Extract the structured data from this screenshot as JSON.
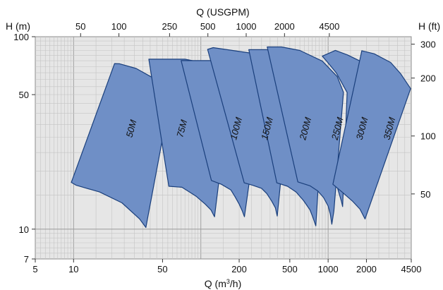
{
  "chart_data": {
    "type": "area",
    "title": "",
    "x_bottom": {
      "label": "Q (m³/h)",
      "label_main": "Q (m",
      "label_sup": "3",
      "label_rest": "/h)",
      "scale": "log",
      "range": [
        5,
        4500
      ],
      "ticks": [
        5,
        10,
        50,
        200,
        500,
        1000,
        2000,
        4500
      ],
      "tick_labels": [
        "5",
        "10",
        "50",
        "200",
        "500",
        "1000",
        "2000",
        "4500"
      ]
    },
    "x_top": {
      "label": "Q (USGPM)",
      "scale": "log",
      "ticks": [
        50,
        100,
        250,
        500,
        1000,
        2000,
        4500
      ],
      "tick_labels": [
        "50",
        "100",
        "250",
        "500",
        "1000",
        "2000",
        "4500"
      ]
    },
    "y_left": {
      "label": "H (m)",
      "scale": "log",
      "range": [
        7,
        100
      ],
      "ticks": [
        7,
        10,
        50,
        100
      ],
      "tick_labels": [
        "7",
        "10",
        "50",
        "100"
      ]
    },
    "y_right": {
      "label": "H (ft)",
      "scale": "log",
      "ticks": [
        50,
        100,
        200,
        300
      ],
      "tick_labels": [
        "50",
        "100",
        "200",
        "300"
      ]
    },
    "grid": true,
    "fill_color": "#6f8fc6",
    "edge_color": "#1a3f7c",
    "series": [
      {
        "name": "50M",
        "label_at": [
          30,
          33
        ],
        "boundary": [
          [
            9.6,
            17.5
          ],
          [
            10.5,
            16.9
          ],
          [
            16,
            15.6
          ],
          [
            24,
            13.7
          ],
          [
            33,
            11.3
          ],
          [
            37,
            10.2
          ],
          [
            57,
            46.9
          ],
          [
            43,
            60.6
          ],
          [
            31,
            68.4
          ],
          [
            23,
            72.3
          ],
          [
            21,
            72.5
          ]
        ]
      },
      {
        "name": "75M",
        "label_at": [
          75,
          33
        ],
        "boundary": [
          [
            56,
            16.7
          ],
          [
            71,
            16.5
          ],
          [
            80,
            15.7
          ],
          [
            92,
            14.8
          ],
          [
            108,
            13.5
          ],
          [
            120,
            12.6
          ],
          [
            128,
            11.6
          ],
          [
            172,
            56.6
          ],
          [
            140,
            66.3
          ],
          [
            100,
            73.6
          ],
          [
            75,
            76.4
          ],
          [
            39,
            76.4
          ]
        ]
      },
      {
        "name": "100M",
        "label_at": [
          200,
          33
        ],
        "boundary": [
          [
            121,
            17.9
          ],
          [
            145,
            17.1
          ],
          [
            172,
            16.0
          ],
          [
            185,
            14.8
          ],
          [
            200,
            13.5
          ],
          [
            212,
            12.4
          ],
          [
            220,
            11.6
          ],
          [
            308,
            57.1
          ],
          [
            275,
            64.9
          ],
          [
            225,
            71.8
          ],
          [
            172,
            75.1
          ],
          [
            120,
            75.1
          ],
          [
            70,
            75.1
          ]
        ]
      },
      {
        "name": "150M",
        "label_at": [
          350,
          33
        ],
        "boundary": [
          [
            219,
            17.4
          ],
          [
            255,
            16.9
          ],
          [
            300,
            16.3
          ],
          [
            330,
            15.3
          ],
          [
            360,
            14.0
          ],
          [
            385,
            12.9
          ],
          [
            398,
            11.7
          ],
          [
            502,
            54.5
          ],
          [
            450,
            65.2
          ],
          [
            350,
            77.4
          ],
          [
            250,
            82.1
          ],
          [
            125,
            87.7
          ],
          [
            113,
            85.9
          ]
        ]
      },
      {
        "name": "200M",
        "label_at": [
          700,
          33
        ],
        "boundary": [
          [
            395,
            17.4
          ],
          [
            480,
            16.7
          ],
          [
            560,
            15.6
          ],
          [
            640,
            14.1
          ],
          [
            720,
            12.6
          ],
          [
            760,
            11.5
          ],
          [
            800,
            10.4
          ],
          [
            930,
            52.6
          ],
          [
            830,
            61.8
          ],
          [
            650,
            72.7
          ],
          [
            500,
            80.3
          ],
          [
            330,
            85.6
          ],
          [
            238,
            85.6
          ]
        ]
      },
      {
        "name": "250M",
        "label_at": [
          1250,
          33
        ],
        "boundary": [
          [
            578,
            17.6
          ],
          [
            720,
            16.8
          ],
          [
            830,
            15.8
          ],
          [
            920,
            14.6
          ],
          [
            1000,
            13.2
          ],
          [
            1040,
            12.0
          ],
          [
            1070,
            10.6
          ],
          [
            1110,
            12.4
          ],
          [
            1320,
            51.4
          ],
          [
            1180,
            62.0
          ],
          [
            900,
            74.7
          ],
          [
            600,
            84.8
          ],
          [
            430,
            88.5
          ],
          [
            332,
            88.5
          ]
        ]
      },
      {
        "name": "300M",
        "label_at": [
          1950,
          33
        ],
        "boundary": [
          [
            1170,
            16.8
          ],
          [
            1270,
            14.0
          ],
          [
            1300,
            13.1
          ],
          [
            1410,
            51.3
          ],
          [
            1160,
            64.8
          ],
          [
            1000,
            73.1
          ],
          [
            900,
            79.2
          ],
          [
            1140,
            84.9
          ],
          [
            1420,
            80.4
          ],
          [
            1800,
            74.5
          ],
          [
            2060,
            58.2
          ]
        ]
      },
      {
        "name": "350M",
        "label_at": [
          3200,
          33
        ],
        "boundary": [
          [
            1090,
            17.1
          ],
          [
            1300,
            15.5
          ],
          [
            1550,
            14.0
          ],
          [
            1780,
            12.7
          ],
          [
            1950,
            11.3
          ],
          [
            4450,
            53.7
          ],
          [
            3700,
            64.4
          ],
          [
            3100,
            73.5
          ],
          [
            2300,
            81.5
          ],
          [
            1840,
            84.5
          ]
        ]
      }
    ]
  }
}
